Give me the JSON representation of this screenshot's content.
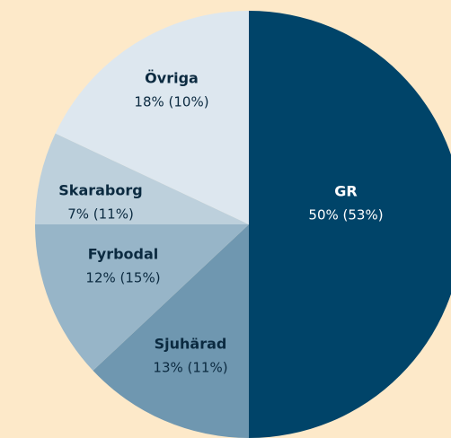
{
  "chart_data": {
    "type": "pie",
    "categories": [
      "GR",
      "Sjuhärad",
      "Fyrbodal",
      "Skaraborg",
      "Övriga"
    ],
    "values": [
      50,
      13,
      12,
      7,
      18
    ],
    "value_labels": [
      "50% (53%)",
      "13% (11%)",
      "12% (15%)",
      "7% (11%)",
      "18% (10%)"
    ],
    "colors": [
      "#004469",
      "#6f97b0",
      "#97b5c8",
      "#bdd0dc",
      "#dde7ef"
    ]
  }
}
